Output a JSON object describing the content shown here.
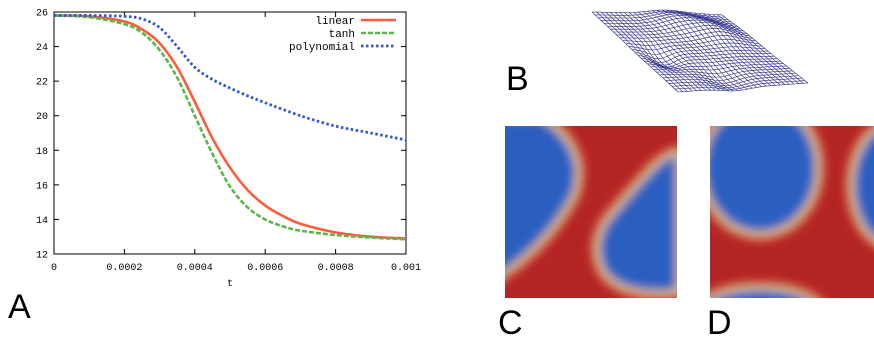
{
  "panels": {
    "a": "A",
    "b": "B",
    "c": "C",
    "d": "D"
  },
  "colors": {
    "linear": "#ff5a3c",
    "tanh": "#5ab84a",
    "polynomial": "#3355dd",
    "mesh": "#2a2a8a",
    "field_high": "#b52424",
    "field_low": "#2b5fc0"
  },
  "chart_data": {
    "type": "line",
    "title": "",
    "xlabel": "t",
    "ylabel": "",
    "xlim": [
      0,
      0.001
    ],
    "ylim": [
      12,
      26
    ],
    "grid": false,
    "legend_position": "top-right",
    "xticks": [
      "0",
      "0.0002",
      "0.0004",
      "0.0006",
      "0.0008",
      "0.001"
    ],
    "yticks": [
      "12",
      "14",
      "16",
      "18",
      "20",
      "22",
      "24",
      "26"
    ],
    "series": [
      {
        "name": "linear",
        "x": [
          0,
          0.0001,
          0.0002,
          0.00025,
          0.0003,
          0.00035,
          0.0004,
          0.00045,
          0.0005,
          0.00055,
          0.0006,
          0.00065,
          0.0007,
          0.0008,
          0.0009,
          0.001
        ],
        "y": [
          25.8,
          25.75,
          25.45,
          25.0,
          24.2,
          22.8,
          20.8,
          18.7,
          17.0,
          15.7,
          14.8,
          14.2,
          13.75,
          13.25,
          13.0,
          12.9
        ]
      },
      {
        "name": "tanh",
        "x": [
          0,
          0.0001,
          0.0002,
          0.00025,
          0.0003,
          0.00035,
          0.0004,
          0.00045,
          0.0005,
          0.00055,
          0.0006,
          0.00065,
          0.0007,
          0.0008,
          0.0009,
          0.001
        ],
        "y": [
          25.8,
          25.7,
          25.3,
          24.8,
          23.8,
          22.2,
          20.0,
          17.8,
          15.9,
          14.7,
          14.0,
          13.6,
          13.35,
          13.1,
          12.95,
          12.85
        ]
      },
      {
        "name": "polynomial",
        "x": [
          0,
          0.0001,
          0.0002,
          0.00025,
          0.0003,
          0.00035,
          0.0004,
          0.00045,
          0.0005,
          0.00055,
          0.0006,
          0.0007,
          0.0008,
          0.0009,
          0.001
        ],
        "y": [
          25.8,
          25.8,
          25.75,
          25.6,
          25.1,
          24.0,
          22.8,
          22.1,
          21.6,
          21.15,
          20.75,
          20.0,
          19.4,
          19.0,
          18.6
        ]
      }
    ]
  }
}
